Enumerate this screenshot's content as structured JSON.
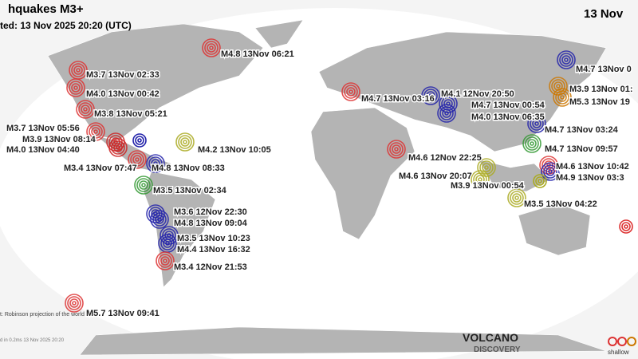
{
  "header": {
    "title": "hquakes M3+",
    "updated": "ted: 13 Nov 2025 20:20 (UTC)",
    "date": "13 Nov"
  },
  "footer": {
    "projection": "t: Robinson projection of the world",
    "generated": "d in 0.2ms 13 Nov 2025 20:20",
    "logo_top": "VOLCANO",
    "logo_bottom": "DISCOVERY",
    "legend": "shallow"
  },
  "quakes": [
    {
      "label": "M4.8 13Nov 06:21",
      "color": "#d33"
    },
    {
      "label": "M3.7 13Nov 02:33",
      "color": "#d33"
    },
    {
      "label": "M4.0 13Nov 00:42",
      "color": "#d33"
    },
    {
      "label": "M3.8 13Nov 05:21",
      "color": "#d33"
    },
    {
      "label": "M3.7 13Nov 05:56",
      "color": "#d33"
    },
    {
      "label": "M3.9 13Nov 08:14",
      "color": "#c22"
    },
    {
      "label": "M4.0 13Nov 04:40",
      "color": "#c22"
    },
    {
      "label": "M3.4 13Nov 07:47",
      "color": "#d33"
    },
    {
      "label": "M4.8 13Nov 08:33",
      "color": "#22a"
    },
    {
      "label": "M4.2 13Nov 10:05",
      "color": "#aa2"
    },
    {
      "label": "M3.5 13Nov 02:34",
      "color": "#393"
    },
    {
      "label": "M3.6 12Nov 22:30",
      "color": "#22a"
    },
    {
      "label": "M4.8 13Nov 09:04",
      "color": "#22a"
    },
    {
      "label": "M3.5 13Nov 10:23",
      "color": "#22a"
    },
    {
      "label": "M4.4 13Nov 16:32",
      "color": "#22a"
    },
    {
      "label": "M3.4 12Nov 21:53",
      "color": "#d33"
    },
    {
      "label": "M5.7 13Nov 09:41",
      "color": "#d33"
    },
    {
      "label": "M4.7 13Nov 03:16",
      "color": "#d33"
    },
    {
      "label": "M4.1 12Nov 20:50",
      "color": "#22a"
    },
    {
      "label": "M4.7 13Nov 00:54",
      "color": "#22a"
    },
    {
      "label": "M4.0 13Nov 06:35",
      "color": "#22a"
    },
    {
      "label": "M4.7 13Nov 03:24",
      "color": "#22a"
    },
    {
      "label": "M4.7 13Nov 09:57",
      "color": "#393"
    },
    {
      "label": "M4.6 12Nov 22:25",
      "color": "#d33"
    },
    {
      "label": "M4.6 13Nov 20:07",
      "color": "#aa2"
    },
    {
      "label": "M3.9 13Nov 00:54",
      "color": "#aa2"
    },
    {
      "label": "M4.6 13Nov 10:42",
      "color": "#d33"
    },
    {
      "label": "M4.9 13Nov 03:3",
      "color": "#22a"
    },
    {
      "label": "M3.5 13Nov 04:22",
      "color": "#aa2"
    },
    {
      "label": "M4.7 13Nov 0",
      "color": "#22a"
    },
    {
      "label": "M3.9 13Nov 01:",
      "color": "#c70"
    },
    {
      "label": "M5.3 13Nov 19",
      "color": "#c70"
    }
  ]
}
